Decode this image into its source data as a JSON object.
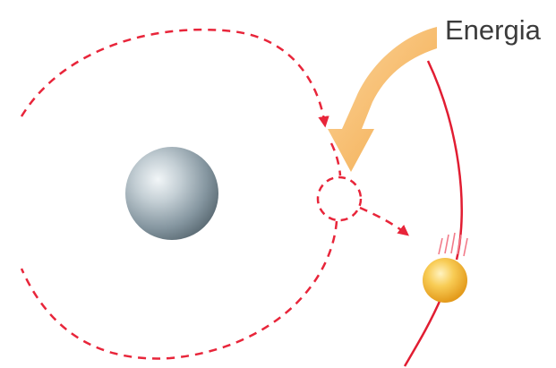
{
  "diagram": {
    "label_energy": "Energia"
  },
  "colors": {
    "orbit_path": "#e8253a",
    "outer_orbit": "#e11d32",
    "energy_arrow": "#f6b85c",
    "nucleus": "#9aa8b0",
    "particle": "#f5b934",
    "label": "#3b3b3b"
  },
  "elements": {
    "nucleus": "nucleus-sphere",
    "particle": "electron-particle",
    "arrow": "energy-arrow-icon"
  }
}
